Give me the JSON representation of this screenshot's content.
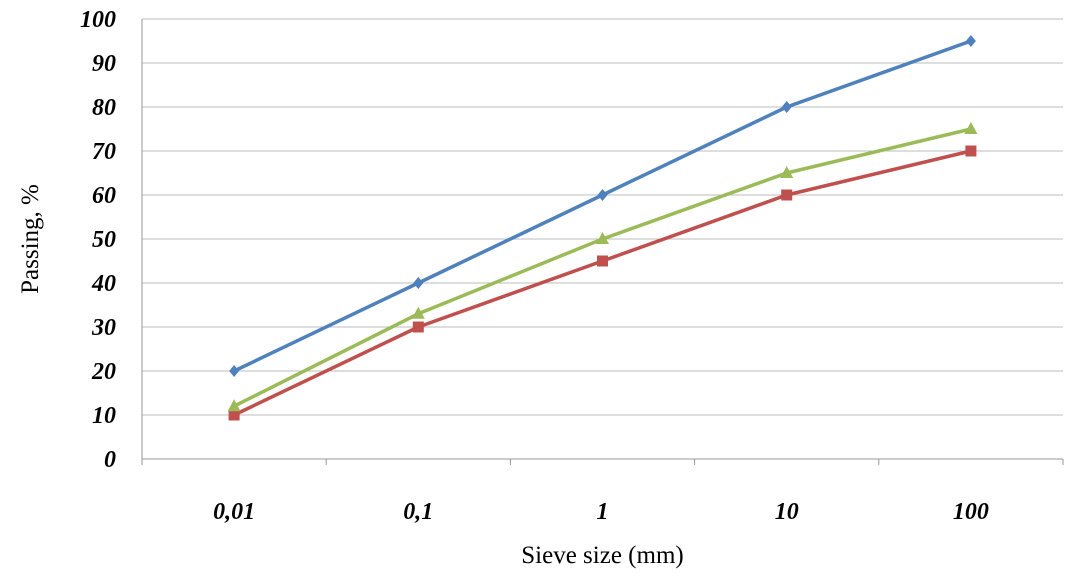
{
  "chart_data": {
    "type": "line",
    "categories": [
      "0,01",
      "0,1",
      "1",
      "10",
      "100"
    ],
    "y_ticks": [
      "0",
      "10",
      "20",
      "30",
      "40",
      "50",
      "60",
      "70",
      "80",
      "90",
      "100"
    ],
    "ylim": [
      0,
      100
    ],
    "xlabel": "Sieve size (mm)",
    "ylabel": "Passing, %",
    "grid": true,
    "legend": "none",
    "series": [
      {
        "values": [
          20,
          40,
          60,
          80,
          95
        ],
        "color": "#4F81BD",
        "marker": "diamond"
      },
      {
        "values": [
          10,
          30,
          45,
          60,
          70
        ],
        "color": "#C0504D",
        "marker": "square"
      },
      {
        "values": [
          12,
          33,
          50,
          65,
          75
        ],
        "color": "#9BBB59",
        "marker": "triangle"
      }
    ]
  }
}
